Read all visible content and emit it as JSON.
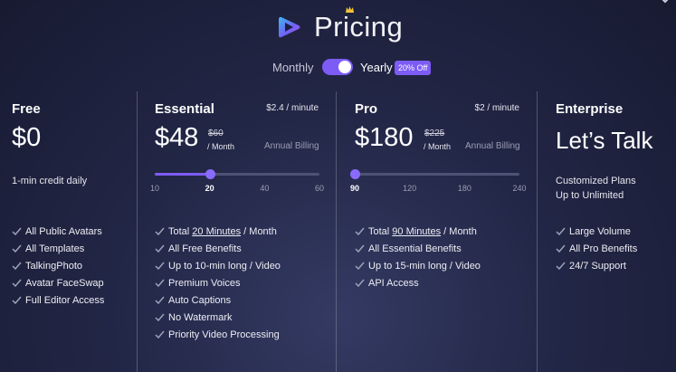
{
  "header": {
    "title": "Pricing",
    "logo_icon": "gradient-ribbon-logo-icon",
    "crown_icon": "crown-icon"
  },
  "billing_toggle": {
    "monthly_label": "Monthly",
    "yearly_label": "Yearly",
    "discount_badge": "20% Off",
    "selected": "Yearly",
    "accent_color": "#7c5cf5"
  },
  "plans": {
    "free": {
      "name": "Free",
      "price": "$0",
      "subtitle": "1-min credit daily",
      "features": [
        "All Public Avatars",
        "All Templates",
        "TalkingPhoto",
        "Avatar FaceSwap",
        "Full Editor Access"
      ]
    },
    "essential": {
      "name": "Essential",
      "rate": "$2.4 / minute",
      "price": "$48",
      "old_price": "$60",
      "per_month": "/ Month",
      "billing": "Annual Billing",
      "slider": {
        "ticks": [
          "10",
          "20",
          "40",
          "60"
        ],
        "selected": "20",
        "selected_fraction": 0.333
      },
      "features_first": {
        "pre": "Total ",
        "em": "20 Minutes",
        "post": " / Month"
      },
      "features": [
        "All Free Benefits",
        "Up to 10-min long / Video",
        "Premium Voices",
        "Auto Captions",
        "No Watermark",
        "Priority Video Processing"
      ]
    },
    "pro": {
      "name": "Pro",
      "rate": "$2 / minute",
      "price": "$180",
      "old_price": "$225",
      "per_month": "/ Month",
      "billing": "Annual Billing",
      "slider": {
        "ticks": [
          "90",
          "120",
          "180",
          "240"
        ],
        "selected": "90",
        "selected_fraction": 0.0
      },
      "features_first": {
        "pre": "Total ",
        "em": "90 Minutes",
        "post": " / Month"
      },
      "features": [
        "All Essential Benefits",
        "Up to 15-min long / Video",
        "API Access"
      ]
    },
    "enterprise": {
      "name": "Enterprise",
      "price": "Let’s Talk",
      "subtitle_lines": [
        "Customized Plans",
        "Up to Unlimited"
      ],
      "features": [
        "Large Volume",
        "All Pro Benefits",
        "24/7 Support"
      ]
    }
  },
  "check_icon": "check-icon",
  "check_color": "#9aa3b8"
}
